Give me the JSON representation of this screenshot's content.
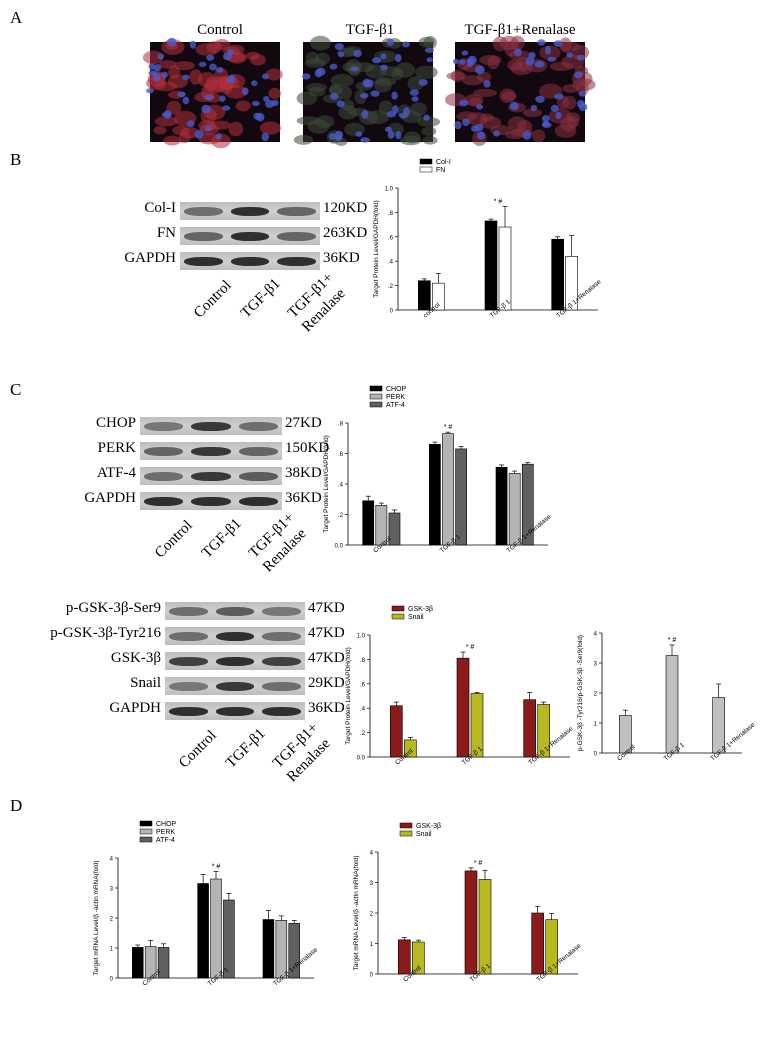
{
  "panels": {
    "A": "A",
    "B": "B",
    "C": "C",
    "D": "D"
  },
  "micro": {
    "titles": [
      "Control",
      "TGF-β1",
      "TGF-β1+Renalase"
    ],
    "colors": [
      "#b0303a",
      "#3c4a38",
      "#8a3040"
    ]
  },
  "blot_x_labels": [
    "Control",
    "TGF-β1",
    "TGF-β1+\nRenalase"
  ],
  "blotB": {
    "rows": [
      {
        "name": "Col-I",
        "kd": "120KD",
        "bands": [
          0.5,
          0.85,
          0.55
        ]
      },
      {
        "name": "FN",
        "kd": "263KD",
        "bands": [
          0.55,
          0.85,
          0.55
        ]
      },
      {
        "name": "GAPDH",
        "kd": "36KD",
        "bands": [
          0.85,
          0.85,
          0.85
        ]
      }
    ]
  },
  "blotC1": {
    "rows": [
      {
        "name": "CHOP",
        "kd": "27KD",
        "bands": [
          0.45,
          0.8,
          0.5
        ]
      },
      {
        "name": "PERK",
        "kd": "150KD",
        "bands": [
          0.55,
          0.8,
          0.55
        ]
      },
      {
        "name": "ATF-4",
        "kd": "38KD",
        "bands": [
          0.5,
          0.8,
          0.6
        ]
      },
      {
        "name": "GAPDH",
        "kd": "36KD",
        "bands": [
          0.85,
          0.85,
          0.85
        ]
      }
    ]
  },
  "blotC2": {
    "rows": [
      {
        "name": "p-GSK-3β-Ser9",
        "kd": "47KD",
        "bands": [
          0.5,
          0.6,
          0.45
        ]
      },
      {
        "name": "p-GSK-3β-Tyr216",
        "kd": "47KD",
        "bands": [
          0.5,
          0.85,
          0.5
        ]
      },
      {
        "name": "GSK-3β",
        "kd": "47KD",
        "bands": [
          0.75,
          0.85,
          0.75
        ]
      },
      {
        "name": "Snail",
        "kd": "29KD",
        "bands": [
          0.45,
          0.8,
          0.5
        ]
      },
      {
        "name": "GAPDH",
        "kd": "36KD",
        "bands": [
          0.85,
          0.85,
          0.85
        ]
      }
    ]
  },
  "chart_data": [
    {
      "id": "B",
      "type": "bar",
      "categories": [
        "control",
        "TGF-β 1",
        "TGF-β 1+Renalase"
      ],
      "series": [
        {
          "name": "Col-I",
          "color": "#000000",
          "values": [
            0.24,
            0.73,
            0.58
          ],
          "err": [
            0.015,
            0.015,
            0.02
          ]
        },
        {
          "name": "FN",
          "color": "#ffffff",
          "values": [
            0.22,
            0.68,
            0.44
          ],
          "err": [
            0.08,
            0.17,
            0.17
          ]
        }
      ],
      "ylabel": "Target Protein Level/GAPDH(fold)",
      "ylim": [
        0,
        1.0
      ],
      "yticks": [
        0,
        0.2,
        0.4,
        0.6,
        0.8,
        1.0
      ],
      "ytick_labels": [
        "0",
        ".2",
        ".4",
        ".6",
        ".8",
        "1.0"
      ],
      "annotation": "* #",
      "annot_index": 1,
      "legend": "top-left"
    },
    {
      "id": "C1",
      "type": "bar",
      "categories": [
        "Control",
        "TGF-β 1",
        "TGF-β 1+Renalase"
      ],
      "series": [
        {
          "name": "CHOP",
          "color": "#000000",
          "values": [
            0.29,
            0.66,
            0.51
          ],
          "err": [
            0.03,
            0.015,
            0.015
          ]
        },
        {
          "name": "PERK",
          "color": "#b4b4b4",
          "values": [
            0.26,
            0.73,
            0.47
          ],
          "err": [
            0.015,
            0.01,
            0.015
          ]
        },
        {
          "name": "ATF-4",
          "color": "#606060",
          "values": [
            0.21,
            0.63,
            0.53
          ],
          "err": [
            0.02,
            0.015,
            0.01
          ]
        }
      ],
      "ylabel": "Target Protein Level/GAPDH(fold)",
      "ylim": [
        0,
        0.8
      ],
      "yticks": [
        0,
        0.2,
        0.4,
        0.6,
        0.8
      ],
      "ytick_labels": [
        "0.0",
        ".2",
        ".4",
        ".6",
        ".8"
      ],
      "annotation": "* #",
      "annot_index": 1,
      "legend": "top-left"
    },
    {
      "id": "C2",
      "type": "bar",
      "categories": [
        "Control",
        "TGF-β 1",
        "TGF-β 1+Renalase"
      ],
      "series": [
        {
          "name": "GSK-3β",
          "color": "#8b1a1a",
          "values": [
            0.42,
            0.81,
            0.47
          ],
          "err": [
            0.03,
            0.05,
            0.06
          ]
        },
        {
          "name": "Snail",
          "color": "#b8b820",
          "values": [
            0.14,
            0.52,
            0.43
          ],
          "err": [
            0.02,
            0.01,
            0.02
          ]
        }
      ],
      "ylabel": "Target Protein Level/GAPDH(fold)",
      "ylim": [
        0,
        1.0
      ],
      "yticks": [
        0,
        0.2,
        0.4,
        0.6,
        0.8,
        1.0
      ],
      "ytick_labels": [
        "0.0",
        ".2",
        ".4",
        ".6",
        ".8",
        "1.0"
      ],
      "annotation": "* #",
      "annot_index": 1,
      "legend": "top-left"
    },
    {
      "id": "C3",
      "type": "bar",
      "categories": [
        "Control",
        "TGF-β 1",
        "TGF-β 1+Renalase"
      ],
      "series": [
        {
          "name": "",
          "color": "#c0c0c0",
          "values": [
            1.25,
            3.25,
            1.85
          ],
          "err": [
            0.18,
            0.35,
            0.45
          ]
        }
      ],
      "ylabel": "p-GSK-3β -Tyr216/p-GSK-3β -Ser9(fold)",
      "ylim": [
        0,
        4
      ],
      "yticks": [
        0,
        1,
        2,
        3,
        4
      ],
      "ytick_labels": [
        "0",
        "1",
        "2",
        "3",
        "4"
      ],
      "annotation": "* #",
      "annot_index": 1,
      "legend": "none"
    },
    {
      "id": "D1",
      "type": "bar",
      "categories": [
        "Control",
        "TGF-β 1",
        "TGF-β 1+Renalase"
      ],
      "series": [
        {
          "name": "CHOP",
          "color": "#000000",
          "values": [
            1.02,
            3.15,
            1.95
          ],
          "err": [
            0.08,
            0.3,
            0.3
          ]
        },
        {
          "name": "PERK",
          "color": "#b4b4b4",
          "values": [
            1.05,
            3.3,
            1.92
          ],
          "err": [
            0.2,
            0.25,
            0.15
          ]
        },
        {
          "name": "ATF-4",
          "color": "#606060",
          "values": [
            1.02,
            2.6,
            1.82
          ],
          "err": [
            0.12,
            0.22,
            0.1
          ]
        }
      ],
      "ylabel": "Target mRNA Level/β -actin mRNA(fold)",
      "ylim": [
        0,
        4
      ],
      "yticks": [
        0,
        1,
        2,
        3,
        4
      ],
      "ytick_labels": [
        "0",
        "1",
        "2",
        "3",
        "4"
      ],
      "annotation": "* #",
      "annot_index": 1,
      "legend": "top-left"
    },
    {
      "id": "D2",
      "type": "bar",
      "categories": [
        "Control",
        "TGF-β 1",
        "TGF-β 1+Renalase"
      ],
      "series": [
        {
          "name": "GSK-3β",
          "color": "#8b1a1a",
          "values": [
            1.12,
            3.38,
            2.0
          ],
          "err": [
            0.08,
            0.1,
            0.22
          ]
        },
        {
          "name": "Snail",
          "color": "#b8b820",
          "values": [
            1.05,
            3.1,
            1.78
          ],
          "err": [
            0.06,
            0.3,
            0.2
          ]
        }
      ],
      "ylabel": "Target mRNA Level/β -actin mRNA(fold)",
      "ylim": [
        0,
        4
      ],
      "yticks": [
        0,
        1,
        2,
        3,
        4
      ],
      "ytick_labels": [
        "0",
        "1",
        "2",
        "3",
        "4"
      ],
      "annotation": "* #",
      "annot_index": 1,
      "legend": "top-left"
    }
  ]
}
